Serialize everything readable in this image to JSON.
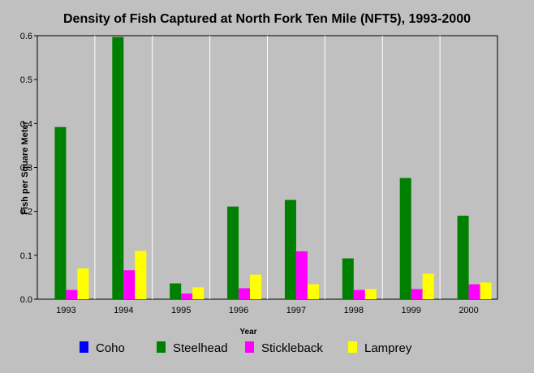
{
  "chart_data": {
    "type": "bar",
    "title": "Density of Fish Captured at North Fork Ten Mile (NFT5), 1993-2000",
    "xlabel": "Year",
    "ylabel": "Fish per Square Meter",
    "ylim": [
      0,
      0.6
    ],
    "yticks": [
      "0.0",
      "0.1",
      "0.2",
      "0.3",
      "0.4",
      "0.5",
      "0.6"
    ],
    "grid": "vertical separators",
    "legend_position": "bottom",
    "categories": [
      "1993",
      "1994",
      "1995",
      "1996",
      "1997",
      "1998",
      "1999",
      "2000"
    ],
    "series": [
      {
        "name": "Coho",
        "color": "#0000ff",
        "values": [
          0,
          0,
          0,
          0,
          0,
          0,
          0,
          0
        ]
      },
      {
        "name": "Steelhead",
        "color": "#008000",
        "values": [
          0.392,
          0.597,
          0.036,
          0.211,
          0.226,
          0.093,
          0.276,
          0.19
        ]
      },
      {
        "name": "Stickleback",
        "color": "#ff00ff",
        "values": [
          0.021,
          0.066,
          0.013,
          0.025,
          0.109,
          0.021,
          0.023,
          0.034
        ]
      },
      {
        "name": "Lamprey",
        "color": "#ffff00",
        "values": [
          0.07,
          0.11,
          0.027,
          0.056,
          0.034,
          0.023,
          0.058,
          0.038
        ]
      }
    ]
  }
}
